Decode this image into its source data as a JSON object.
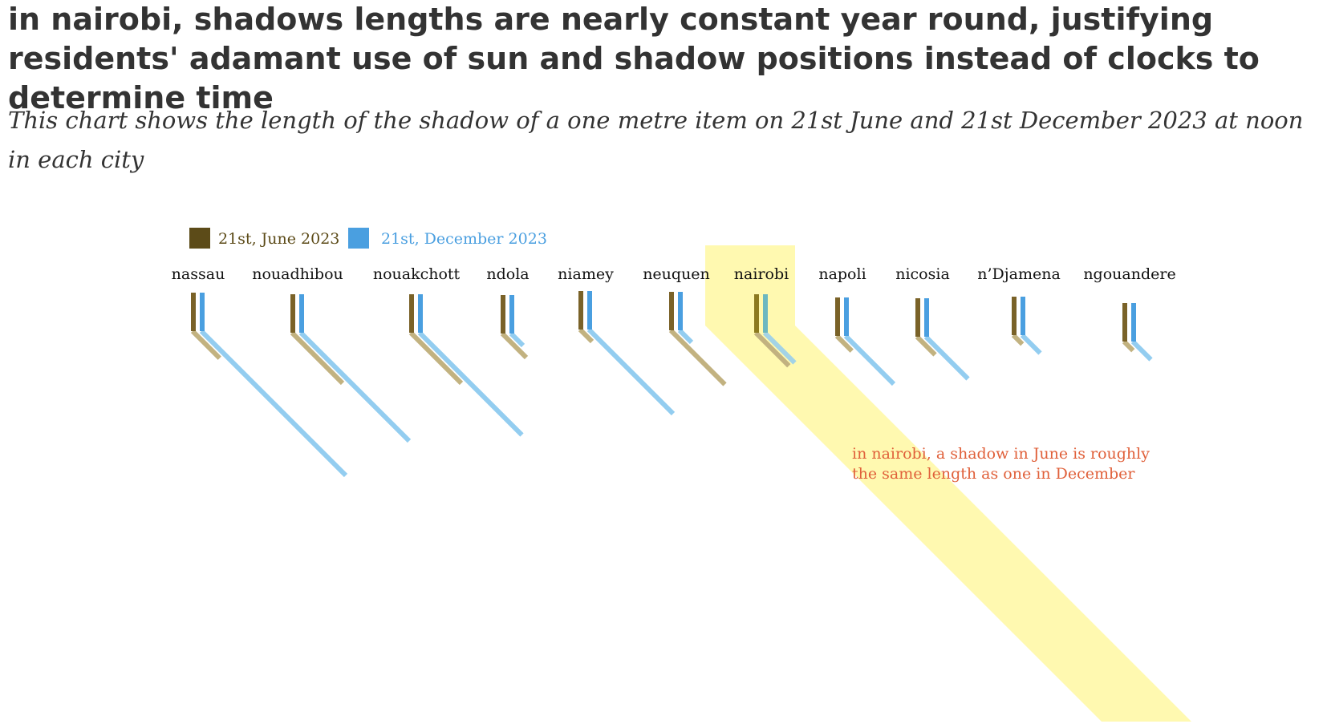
{
  "title": "in nairobi, shadows lengths are nearly constant year round, justifying residents' adamant use of sun and shadow positions instead of clocks to determine time",
  "subtitle": "This chart shows the length of the shadow of a one metre item on 21st June and 21st December 2023 at noon in each city",
  "annotation": {
    "line1": "in nairobi, a shadow in June is roughly",
    "line2": "the same length as one in December"
  },
  "colors": {
    "june": "#5c4b18",
    "june_shadow": "#c2b280",
    "december": "#4a9fe0",
    "december_shadow": "#93cdf0",
    "highlight": "#e0603a",
    "highlight_band": "#fff9b0",
    "text": "#333333"
  },
  "chart_data": {
    "type": "bar",
    "title": "",
    "unit": "metres (shadow of a one metre item at noon)",
    "legend_placement": "top-left",
    "series": [
      {
        "name": "21st, June 2023",
        "key": "june"
      },
      {
        "name": "21st, December 2023",
        "key": "december"
      }
    ],
    "highlight": "nairobi",
    "cities": [
      {
        "name": "nassau",
        "june": 0.45,
        "december": 2.4
      },
      {
        "name": "nouadhibou",
        "june": 0.84,
        "december": 1.8
      },
      {
        "name": "nouakchott",
        "june": 0.84,
        "december": 1.7
      },
      {
        "name": "ndola",
        "june": 0.4,
        "december": 0.2
      },
      {
        "name": "niamey",
        "june": 0.2,
        "december": 1.4
      },
      {
        "name": "neuquen",
        "june": 0.9,
        "december": 0.2
      },
      {
        "name": "nairobi",
        "june": 0.55,
        "december": 0.5
      },
      {
        "name": "napoli",
        "june": 0.25,
        "december": 0.8
      },
      {
        "name": "nicosia",
        "june": 0.3,
        "december": 0.7
      },
      {
        "name": "n’Djamena",
        "june": 0.15,
        "december": 0.3
      },
      {
        "name": "ngouandere",
        "june": 0.15,
        "december": 0.3
      }
    ]
  }
}
